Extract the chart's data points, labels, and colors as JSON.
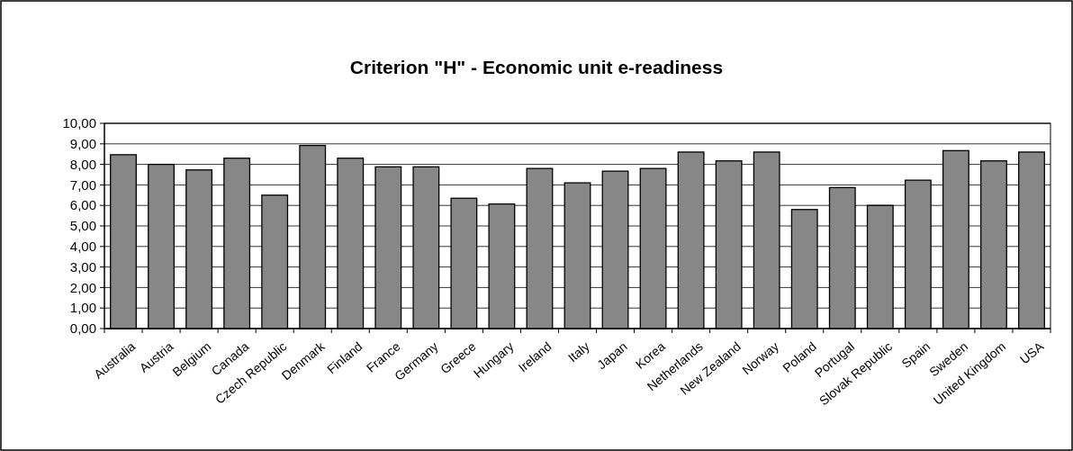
{
  "chart_data": {
    "type": "bar",
    "title": "Criterion \"H\" - Economic unit e-readiness",
    "categories": [
      "Australia",
      "Austria",
      "Belgium",
      "Canada",
      "Czech Republic",
      "Denmark",
      "Finland",
      "France",
      "Germany",
      "Greece",
      "Hungary",
      "Ireland",
      "Italy",
      "Japan",
      "Korea",
      "Netherlands",
      "New Zealand",
      "Norway",
      "Poland",
      "Portugal",
      "Slovak Republic",
      "Spain",
      "Sweden",
      "United Kingdom",
      "USA"
    ],
    "values": [
      8.47,
      8.0,
      7.73,
      8.3,
      6.5,
      8.92,
      8.3,
      7.88,
      7.88,
      6.35,
      6.07,
      7.8,
      7.1,
      7.67,
      7.8,
      8.6,
      8.17,
      8.6,
      5.8,
      6.87,
      6.0,
      7.23,
      8.67,
      8.17,
      8.6
    ],
    "color": "#878787",
    "ylim": [
      0,
      10
    ],
    "yticks": [
      {
        "value": 0,
        "label": "0,00"
      },
      {
        "value": 1,
        "label": "1,00"
      },
      {
        "value": 2,
        "label": "2,00"
      },
      {
        "value": 3,
        "label": "3,00"
      },
      {
        "value": 4,
        "label": "4,00"
      },
      {
        "value": 5,
        "label": "5,00"
      },
      {
        "value": 6,
        "label": "6,00"
      },
      {
        "value": 7,
        "label": "7,00"
      },
      {
        "value": 8,
        "label": "8,00"
      },
      {
        "value": 9,
        "label": "9,00"
      },
      {
        "value": 10,
        "label": "10,00"
      }
    ],
    "grid": "y"
  }
}
